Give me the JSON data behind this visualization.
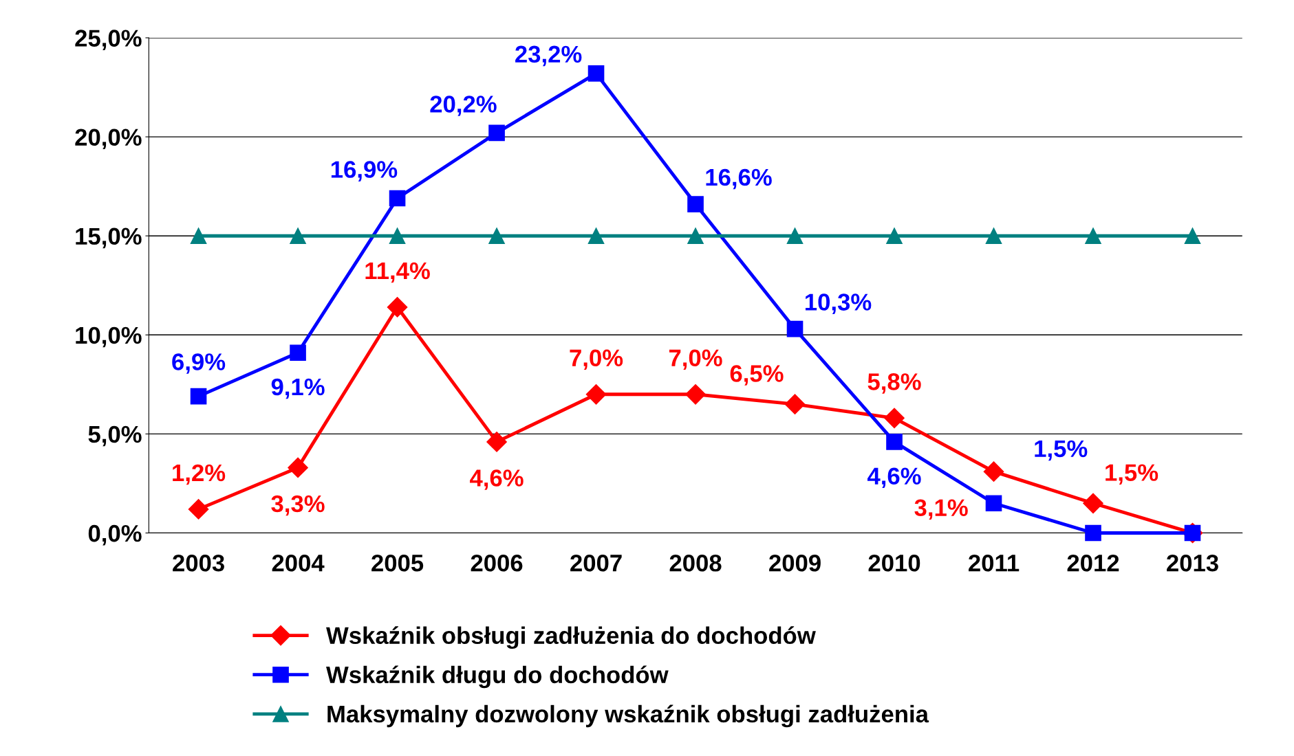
{
  "chart_data": {
    "type": "line",
    "categories": [
      "2003",
      "2004",
      "2005",
      "2006",
      "2007",
      "2008",
      "2009",
      "2010",
      "2011",
      "2012",
      "2013"
    ],
    "series": [
      {
        "name": "Wskaźnik obsługi zadłużenia do dochodów",
        "color": "#ff0000",
        "marker": "diamond",
        "values": [
          1.2,
          3.3,
          11.4,
          4.6,
          7.0,
          7.0,
          6.5,
          5.8,
          3.1,
          1.5,
          0.0
        ],
        "value_labels": [
          "1,2%",
          "3,3%",
          "11,4%",
          "4,6%",
          "7,0%",
          "7,0%",
          "6,5%",
          "5,8%",
          "3,1%",
          "1,5%",
          null
        ]
      },
      {
        "name": "Wskaźnik długu do dochodów",
        "color": "#0000ff",
        "marker": "square",
        "values": [
          6.9,
          9.1,
          16.9,
          20.2,
          23.2,
          16.6,
          10.3,
          4.6,
          1.5,
          0.0,
          0.0
        ],
        "value_labels": [
          "6,9%",
          "9,1%",
          "16,9%",
          "20,2%",
          "23,2%",
          "16,6%",
          "10,3%",
          "4,6%",
          "1,5%",
          null,
          null
        ]
      },
      {
        "name": "Maksymalny dozwolony wskaźnik obsługi zadłużenia",
        "color": "#008080",
        "marker": "triangle",
        "values": [
          15,
          15,
          15,
          15,
          15,
          15,
          15,
          15,
          15,
          15,
          15
        ]
      }
    ],
    "ylim": [
      0,
      25
    ],
    "yticks": [
      {
        "value": 0,
        "label": "0,0%"
      },
      {
        "value": 5,
        "label": "5,0%"
      },
      {
        "value": 10,
        "label": "10,0%"
      },
      {
        "value": 15,
        "label": "15,0%"
      },
      {
        "value": 20,
        "label": "20,0%"
      },
      {
        "value": 25,
        "label": "25,0%"
      }
    ],
    "grid": "y",
    "legend": "bottom",
    "line_style": "solid"
  }
}
